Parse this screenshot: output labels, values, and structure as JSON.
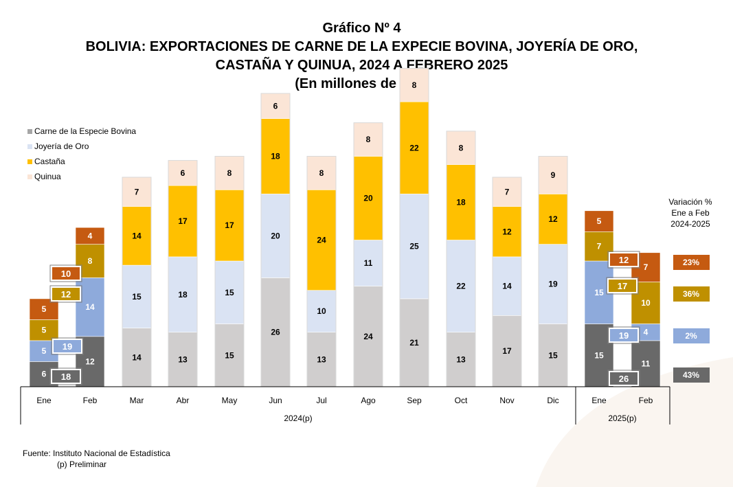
{
  "header": {
    "title": "Gráfico Nº 4",
    "subtitle_line1": "BOLIVIA: EXPORTACIONES DE CARNE DE LA EXPECIE BOVINA, JOYERÍA DE ORO,",
    "subtitle_line2": "CASTAÑA Y QUINUA, 2024 A FEBRERO 2025",
    "unit": "(En millones de $us)"
  },
  "chart_data": {
    "type": "bar",
    "stacked": true,
    "categories": [
      "Ene",
      "Feb",
      "Mar",
      "Abr",
      "May",
      "Jun",
      "Jul",
      "Ago",
      "Sep",
      "Oct",
      "Nov",
      "Dic",
      "Ene",
      "Feb"
    ],
    "groups": [
      {
        "label": "2024(p)",
        "from": 0,
        "to": 11
      },
      {
        "label": "2025(p)",
        "from": 12,
        "to": 13
      }
    ],
    "series": [
      {
        "name": "Carne de la Especie Bovina",
        "values": [
          6,
          12,
          14,
          13,
          15,
          26,
          13,
          24,
          21,
          13,
          17,
          15,
          15,
          11
        ]
      },
      {
        "name": "Joyería de Oro",
        "values": [
          5,
          14,
          15,
          18,
          15,
          20,
          10,
          11,
          25,
          22,
          14,
          19,
          15,
          4
        ]
      },
      {
        "name": "Castaña",
        "values": [
          5,
          8,
          14,
          17,
          17,
          18,
          24,
          20,
          22,
          18,
          12,
          12,
          7,
          10
        ]
      },
      {
        "name": "Quinua",
        "values": [
          5,
          4,
          7,
          6,
          8,
          6,
          8,
          8,
          8,
          8,
          7,
          9,
          5,
          7
        ]
      }
    ],
    "legend_position": "top-left",
    "grid": false,
    "highlight_colors": {
      "2024": [
        "#696969",
        "#8eaadb",
        "#bf9000",
        "#c55a11"
      ],
      "2025": [
        "#696969",
        "#8eaadb",
        "#bf9000",
        "#c55a11"
      ]
    },
    "base_colors": [
      "#d0cece",
      "#dae3f3",
      "#ffc000",
      "#fbe5d6"
    ],
    "callouts": {
      "2024": {
        "Carne de la Especie Bovina": 18,
        "Joyería de Oro": 19,
        "Castaña": 12,
        "Quinua": 10
      },
      "2025": {
        "Carne de la Especie Bovina": 26,
        "Joyería de Oro": 19,
        "Castaña": 17,
        "Quinua": 12
      }
    },
    "variation": {
      "title_lines": [
        "Variación %",
        "Ene a Feb",
        "2024-2025"
      ],
      "values": {
        "Quinua": "23%",
        "Castaña": "36%",
        "Joyería de Oro": "2%",
        "Carne de la Especie Bovina": "43%"
      }
    }
  },
  "footer": {
    "source": "Fuente: Instituto Nacional de Estadística",
    "note": "(p) Preliminar"
  }
}
